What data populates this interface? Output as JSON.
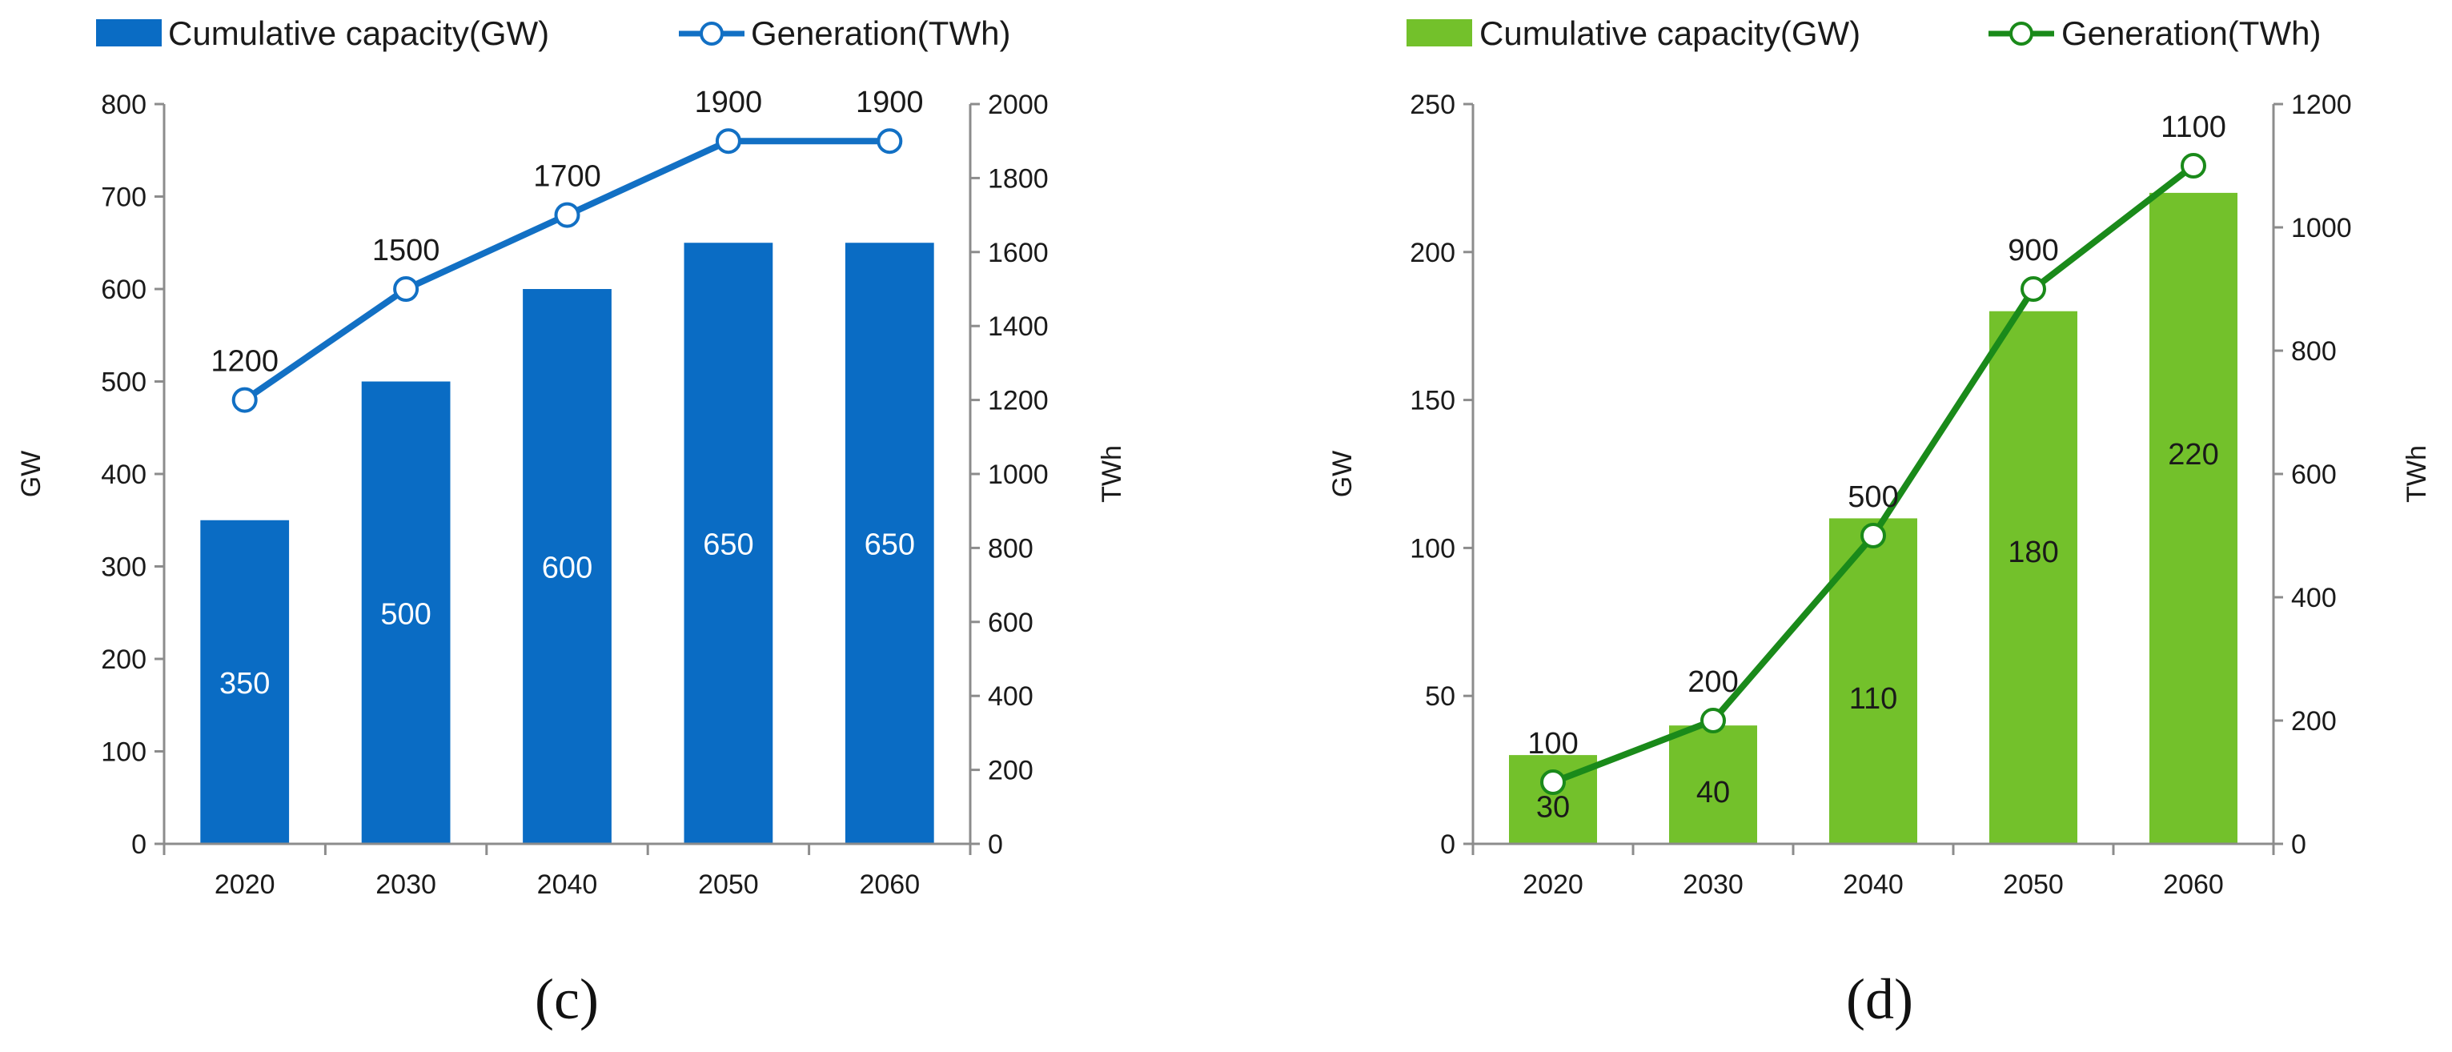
{
  "chart_data": [
    {
      "type": "bar",
      "panel_label": "(c)",
      "categories": [
        "2020",
        "2030",
        "2040",
        "2050",
        "2060"
      ],
      "series": [
        {
          "name": "Cumulative capacity(GW)",
          "kind": "bar",
          "axis": "left",
          "values": [
            350,
            500,
            600,
            650,
            650
          ],
          "labels": [
            "350",
            "500",
            "600",
            "650",
            "650"
          ]
        },
        {
          "name": "Generation(TWh)",
          "kind": "line",
          "axis": "right",
          "values": [
            1200,
            1500,
            1700,
            1900,
            1900
          ],
          "labels": [
            "1200",
            "1500",
            "1700",
            "1900",
            "1900"
          ]
        }
      ],
      "ylabel": "GW",
      "y2label": "TWh",
      "ylim": [
        0,
        800
      ],
      "y2lim": [
        0,
        2000
      ],
      "yticks": [
        "0",
        "100",
        "200",
        "300",
        "400",
        "500",
        "600",
        "700",
        "800"
      ],
      "y2ticks": [
        "0",
        "200",
        "400",
        "600",
        "800",
        "1000",
        "1200",
        "1400",
        "1600",
        "1800",
        "2000"
      ],
      "bar_color": "#0a6cc4",
      "line_color": "#1270c4",
      "bar_label_color": "#ffffff",
      "legend_position": "top"
    },
    {
      "type": "bar",
      "panel_label": "(d)",
      "categories": [
        "2020",
        "2030",
        "2040",
        "2050",
        "2060"
      ],
      "series": [
        {
          "name": "Cumulative capacity(GW)",
          "kind": "bar",
          "axis": "left",
          "values": [
            30,
            40,
            110,
            180,
            220
          ],
          "labels": [
            "30",
            "40",
            "110",
            "180",
            "220"
          ]
        },
        {
          "name": "Generation(TWh)",
          "kind": "line",
          "axis": "right",
          "values": [
            100,
            200,
            500,
            900,
            1100
          ],
          "labels": [
            "100",
            "200",
            "500",
            "900",
            "1100"
          ]
        }
      ],
      "ylabel": "GW",
      "y2label": "TWh",
      "ylim": [
        0,
        250
      ],
      "y2lim": [
        0,
        1200
      ],
      "yticks": [
        "0",
        "50",
        "100",
        "150",
        "200",
        "250"
      ],
      "y2ticks": [
        "0",
        "200",
        "400",
        "600",
        "800",
        "1000",
        "1200"
      ],
      "bar_color": "#73c12b",
      "line_color": "#1a8a1a",
      "bar_label_color": "#1a1a1a",
      "legend_position": "top"
    }
  ]
}
